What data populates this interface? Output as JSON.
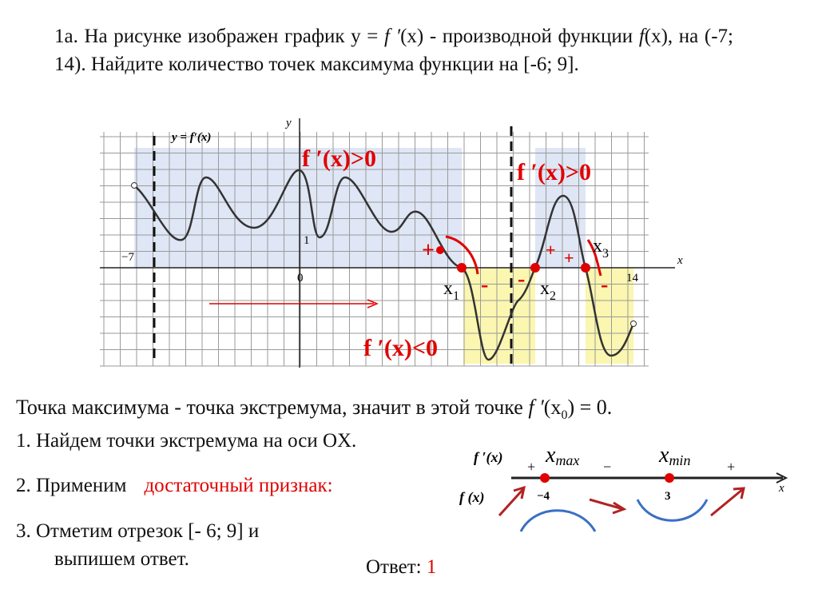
{
  "problem": {
    "parts": [
      "1а. На рисунке изображен график  y = ",
      "f ′",
      "(x) - производной функции ",
      "f",
      "(x), на (-7; 14). Найдите количество точек максимума функции  на [-6; 9]."
    ]
  },
  "graph": {
    "function_label": "y = f′(x)",
    "axis_x": "x",
    "axis_y": "y",
    "tick_x_min": "−7",
    "origin": "0",
    "tick_y_one": "1",
    "tick_x_max": "14",
    "annotations": {
      "positive_left": "f ′(x)>0",
      "positive_right": "f ′(x)>0",
      "negative": "f ′(x)<0",
      "plus_1": "+",
      "plus_2": "+",
      "plus_3": "+",
      "minus_1": "-",
      "minus_2": "-",
      "minus_3": "-"
    },
    "points": [
      {
        "name": "x",
        "index": "1"
      },
      {
        "name": "x",
        "index": "2"
      },
      {
        "name": "x",
        "index": "3"
      }
    ]
  },
  "statement": {
    "parts": [
      "Точка максимума - точка экстремума, значит в этой точке ",
      "f ′",
      "(x",
      "0",
      ") = 0."
    ]
  },
  "steps": [
    "1. Найдем точки экстремума на оси OX.",
    {
      "text": "2. Применим",
      "highlight": "достаточный  признак:"
    },
    {
      "line1": "3. Отметим отрезок [- 6; 9] и",
      "line2": "выпишем ответ."
    }
  ],
  "sign_diagram": {
    "derivative_label": "f ′(x)",
    "function_label": "f (x)",
    "max": {
      "name": "x",
      "index": "max"
    },
    "min": {
      "name": "x",
      "index": "min"
    },
    "signs": [
      "+",
      "−",
      "+"
    ],
    "max_value": "−4",
    "min_value": "3",
    "axis": "x"
  },
  "answer": {
    "label": "Ответ:",
    "value": "1"
  }
}
